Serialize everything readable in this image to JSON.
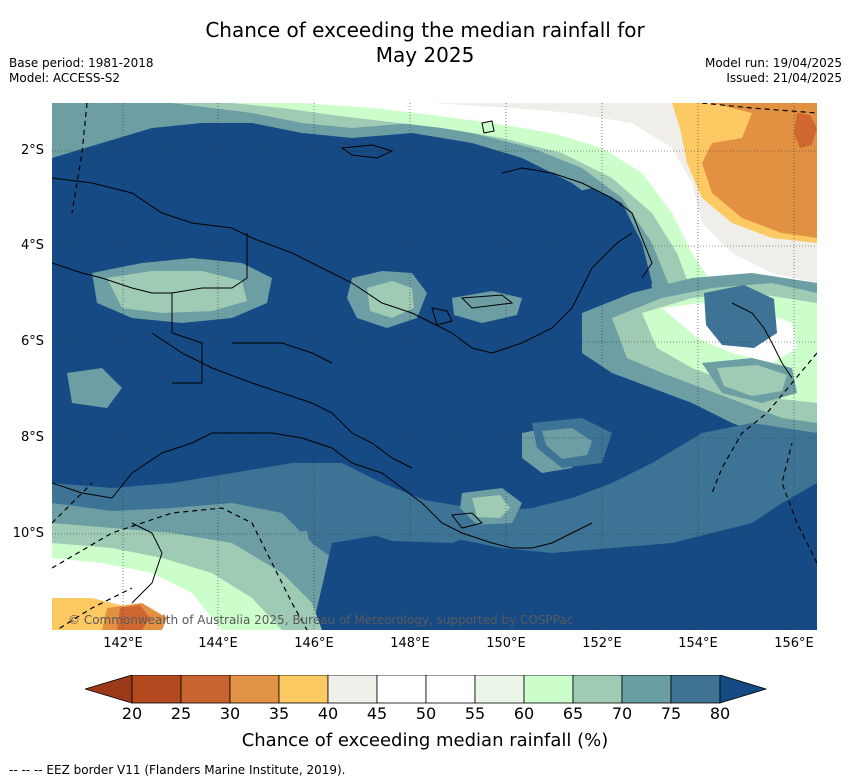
{
  "title": {
    "line1": "Chance of exceeding the median rainfall for",
    "line2": "May 2025"
  },
  "meta": {
    "base_period": "Base period: 1981-2018",
    "model": "Model: ACCESS-S2",
    "model_run": "Model run: 19/04/2025",
    "issued": "Issued: 21/04/2025"
  },
  "map": {
    "lat_labels": [
      "2°S",
      "4°S",
      "6°S",
      "8°S",
      "10°S"
    ],
    "lon_labels": [
      "142°E",
      "144°E",
      "146°E",
      "148°E",
      "150°E",
      "152°E",
      "154°E",
      "156°E"
    ],
    "copyright": "© Commonwealth of Australia 2025, Bureau of Meteorology, supported by COSPPac",
    "colors": {
      "p80": "#154a85",
      "p75": "#3d7394",
      "p70": "#6c9ea3",
      "p65": "#9fcbb5",
      "p60": "#cbfecb",
      "p55": "#eaf5ea",
      "p50": "#ffffff",
      "p45": "#efede8",
      "p40": "#f2f0ec",
      "p35": "#fdc963",
      "p30": "#e19141",
      "p25": "#d06731"
    }
  },
  "colorbar": {
    "ticks": [
      "20",
      "25",
      "30",
      "35",
      "40",
      "45",
      "50",
      "55",
      "60",
      "65",
      "70",
      "75",
      "80"
    ],
    "colors": [
      "#b3491e",
      "#c8642f",
      "#e29244",
      "#fdc963",
      "#f1efea",
      "#ffffff",
      "#ffffff",
      "#ebf6e9",
      "#cbfecb",
      "#9fcbb5",
      "#6a9ea5",
      "#3e7394"
    ],
    "low_extend_color": "#9a3a18",
    "high_extend_color": "#154a85",
    "label": "Chance of exceeding median rainfall (%)"
  },
  "footnote": "--  --  -- EEZ border V11 (Flanders Marine Institute, 2019)."
}
